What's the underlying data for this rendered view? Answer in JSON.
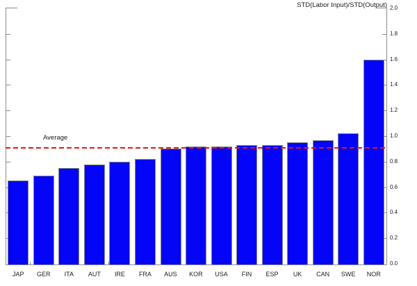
{
  "chart_data": {
    "type": "bar",
    "title": "STD(Labor Input)/STD(Output)",
    "categories": [
      "JAP",
      "GER",
      "ITA",
      "AUT",
      "IRE",
      "FRA",
      "AUS",
      "KOR",
      "USA",
      "FIN",
      "ESP",
      "UK",
      "CAN",
      "SWE",
      "NOR"
    ],
    "values": [
      0.65,
      0.69,
      0.75,
      0.78,
      0.8,
      0.82,
      0.9,
      0.92,
      0.92,
      0.93,
      0.93,
      0.95,
      0.97,
      1.02,
      1.6
    ],
    "average": {
      "label": "Average",
      "value": 0.91
    },
    "xlabel": "",
    "ylabel": "STD(Labor Input)/STD(Output)",
    "ylim": [
      0.0,
      2.0
    ],
    "ytick_step": 0.2,
    "ytick_labels": [
      "0.0",
      "0.2",
      "0.4",
      "0.6",
      "0.8",
      "1.0",
      "1.2",
      "1.4",
      "1.6",
      "1.8",
      "2.0"
    ],
    "yaxis_label_side": "right",
    "grid": false,
    "legend_position": "none",
    "bar_color": "#0405f6",
    "bar_border_color": "#8a8a8a",
    "average_line_color": "#f01010",
    "axis_color": "#8c8c8c",
    "text_color": "#1a1a1a"
  }
}
